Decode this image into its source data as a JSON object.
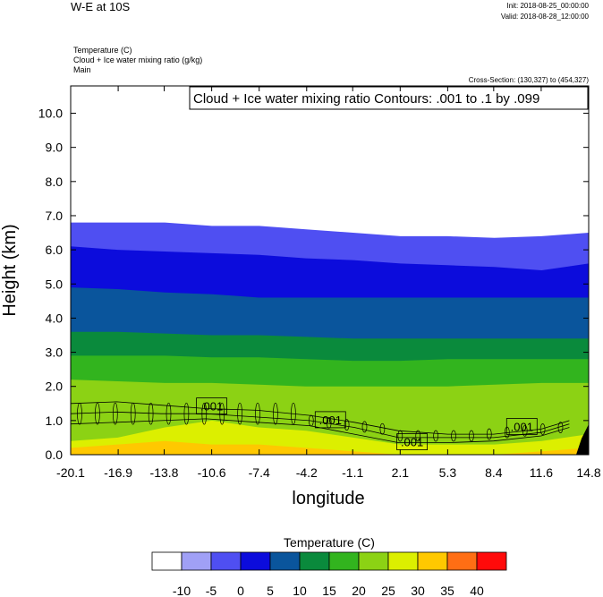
{
  "header": {
    "title": "W-E at 10S",
    "init": "Init: 2018-08-25_00:00:00",
    "valid": "Valid: 2018-08-28_12:00:00",
    "fields": [
      "Temperature   (C)",
      "Cloud + Ice water mixing ratio   (g/kg)",
      "Main"
    ],
    "cross_section": "Cross-Section: (130,327) to (454,327)",
    "contour_label": "Cloud + Ice water mixing ratio Contours: .001 to .1 by .099"
  },
  "chart_data": {
    "type": "heatmap",
    "xlabel": "longitude",
    "ylabel": "Height (km)",
    "x_ticks": [
      "-20.1",
      "-16.9",
      "-13.8",
      "-10.6",
      "-7.4",
      "-4.2",
      "-1.1",
      "2.1",
      "5.3",
      "8.4",
      "11.6",
      "14.8"
    ],
    "y_ticks": [
      "0.0",
      "1.0",
      "2.0",
      "3.0",
      "4.0",
      "5.0",
      "6.0",
      "7.0",
      "8.0",
      "9.0",
      "10.0"
    ],
    "xlim": [
      -20.1,
      14.8
    ],
    "ylim": [
      0,
      10.8
    ],
    "colorbar": {
      "title": "Temperature  (C)",
      "levels": [
        "-10",
        "-5",
        "0",
        "5",
        "10",
        "15",
        "20",
        "25",
        "30",
        "35",
        "40"
      ],
      "colors": [
        "#ffffff",
        "#a0a0f6",
        "#4f4ff2",
        "#0c0cdc",
        "#0a559c",
        "#0a8a3c",
        "#32b41e",
        "#8cd214",
        "#dcef00",
        "#ffc800",
        "#ff6e14",
        "#ff0a0a"
      ]
    },
    "isotherm_bands": [
      {
        "level": -5,
        "height_km": [
          6.8,
          6.8,
          6.8,
          6.7,
          6.7,
          6.6,
          6.5,
          6.4,
          6.4,
          6.35,
          6.4,
          6.5
        ]
      },
      {
        "level": 0,
        "height_km": [
          6.1,
          6.0,
          5.95,
          5.9,
          5.85,
          5.75,
          5.7,
          5.6,
          5.55,
          5.5,
          5.4,
          5.6
        ]
      },
      {
        "level": 5,
        "height_km": [
          4.9,
          4.85,
          4.75,
          4.7,
          4.6,
          4.6,
          4.6,
          4.6,
          4.6,
          4.6,
          4.6,
          4.6
        ]
      },
      {
        "level": 10,
        "height_km": [
          3.6,
          3.6,
          3.55,
          3.5,
          3.5,
          3.45,
          3.4,
          3.4,
          3.4,
          3.4,
          3.4,
          3.4
        ]
      },
      {
        "level": 15,
        "height_km": [
          2.9,
          2.9,
          2.9,
          2.85,
          2.85,
          2.8,
          2.75,
          2.75,
          2.8,
          2.8,
          2.8,
          2.8
        ]
      },
      {
        "level": 20,
        "height_km": [
          2.2,
          2.15,
          2.1,
          2.1,
          2.05,
          2.0,
          2.0,
          2.0,
          2.0,
          2.05,
          2.1,
          2.1
        ]
      },
      {
        "level": 25,
        "height_km": [
          0.4,
          0.5,
          0.8,
          1.0,
          0.8,
          0.7,
          0.5,
          0.3,
          0.3,
          0.3,
          0.4,
          0.6
        ]
      },
      {
        "level": 30,
        "height_km": [
          0.2,
          0.3,
          0.4,
          0.3,
          0.3,
          0.2,
          0.1,
          0.0,
          0.0,
          0.0,
          0.1,
          0.2
        ]
      }
    ],
    "contour_labels": [
      {
        "text": ".001",
        "x": -10.6,
        "y": 1.4
      },
      {
        "text": ".001",
        "x": -2.6,
        "y": 1.0
      },
      {
        "text": ".001",
        "x": 2.9,
        "y": 0.35
      },
      {
        "text": ".001",
        "x": 10.3,
        "y": 0.8
      }
    ]
  }
}
